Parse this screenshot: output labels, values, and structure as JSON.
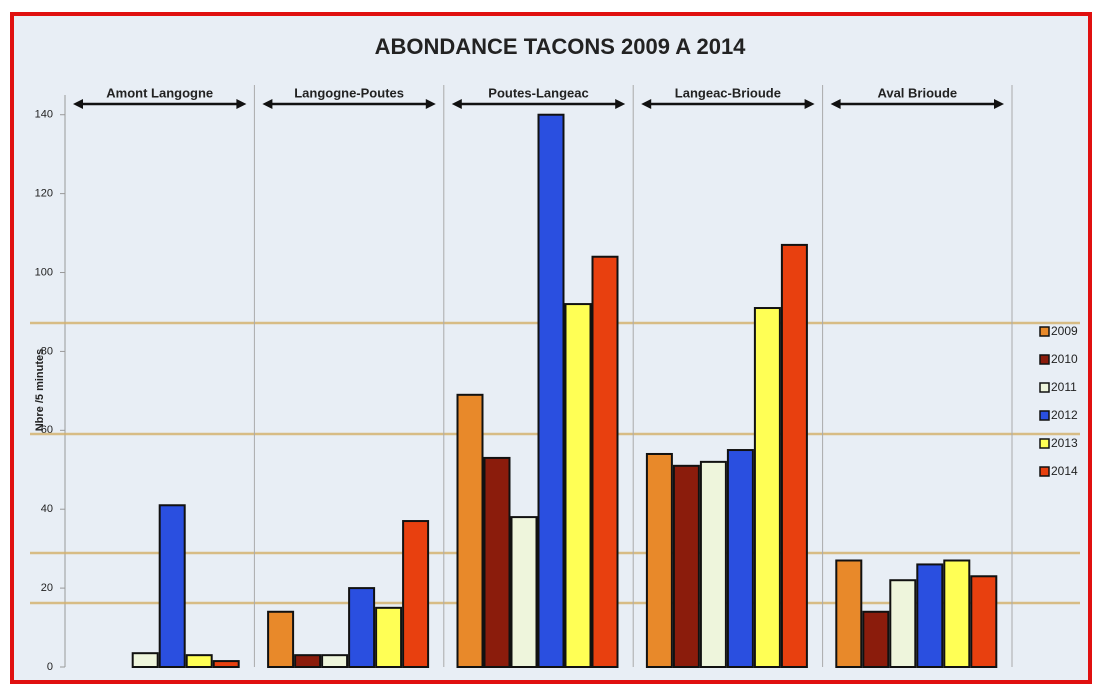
{
  "chart_data": {
    "type": "bar",
    "title": "ABONDANCE TACONS 2009 A 2014",
    "y_label": "Nbre /5 minutes",
    "categories": [
      "Amont Langogne",
      "Langogne-Poutes",
      "Poutes-Langeac",
      "Langeac-Brioude",
      "Aval Brioude"
    ],
    "series": [
      {
        "name": "2009",
        "color": "#e8892a",
        "values": [
          null,
          14,
          69,
          54,
          27
        ]
      },
      {
        "name": "2010",
        "color": "#8b1c0c",
        "values": [
          null,
          3,
          53,
          51,
          14
        ]
      },
      {
        "name": "2011",
        "color": "#eef5dc",
        "values": [
          3.5,
          3,
          38,
          52,
          22
        ]
      },
      {
        "name": "2012",
        "color": "#2a4fe0",
        "values": [
          41,
          20,
          140,
          55,
          26
        ]
      },
      {
        "name": "2013",
        "color": "#ffff55",
        "values": [
          3,
          15,
          92,
          91,
          27
        ]
      },
      {
        "name": "2014",
        "color": "#e8400f",
        "values": [
          1.5,
          37,
          104,
          107,
          23
        ]
      }
    ],
    "ylim": [
      0,
      145
    ],
    "yticks": [
      0,
      20,
      40,
      60,
      80,
      100,
      120,
      140
    ],
    "legend": "right"
  }
}
